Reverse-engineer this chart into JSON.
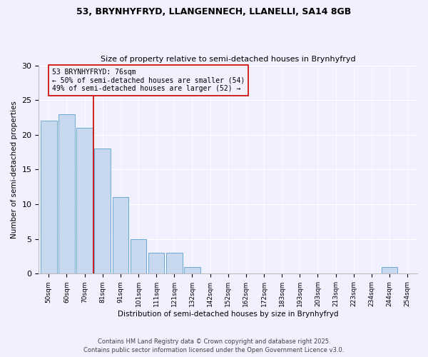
{
  "title1": "53, BRYNHYFRYD, LLANGENNECH, LLANELLI, SA14 8GB",
  "title2": "Size of property relative to semi-detached houses in Brynhyfryd",
  "xlabel": "Distribution of semi-detached houses by size in Brynhyfryd",
  "ylabel": "Number of semi-detached properties",
  "bar_labels": [
    "50sqm",
    "60sqm",
    "70sqm",
    "81sqm",
    "91sqm",
    "101sqm",
    "111sqm",
    "121sqm",
    "132sqm",
    "142sqm",
    "152sqm",
    "162sqm",
    "172sqm",
    "183sqm",
    "193sqm",
    "203sqm",
    "213sqm",
    "223sqm",
    "234sqm",
    "244sqm",
    "254sqm"
  ],
  "bar_values": [
    22,
    23,
    21,
    18,
    11,
    5,
    3,
    3,
    1,
    0,
    0,
    0,
    0,
    0,
    0,
    0,
    0,
    0,
    0,
    1,
    0
  ],
  "bar_color": "#c8d9ef",
  "bar_edge_color": "#6aaad4",
  "vline_color": "#cc0000",
  "vline_x_index": 2.5,
  "annotation_title": "53 BRYNHYFRYD: 76sqm",
  "annotation_line1": "← 50% of semi-detached houses are smaller (54)",
  "annotation_line2": "49% of semi-detached houses are larger (52) →",
  "annotation_box_edge": "#cc0000",
  "ylim": [
    0,
    30
  ],
  "yticks": [
    0,
    5,
    10,
    15,
    20,
    25,
    30
  ],
  "footnote1": "Contains HM Land Registry data © Crown copyright and database right 2025.",
  "footnote2": "Contains public sector information licensed under the Open Government Licence v3.0.",
  "background_color": "#f0f0ff",
  "grid_color": "#ffffff"
}
